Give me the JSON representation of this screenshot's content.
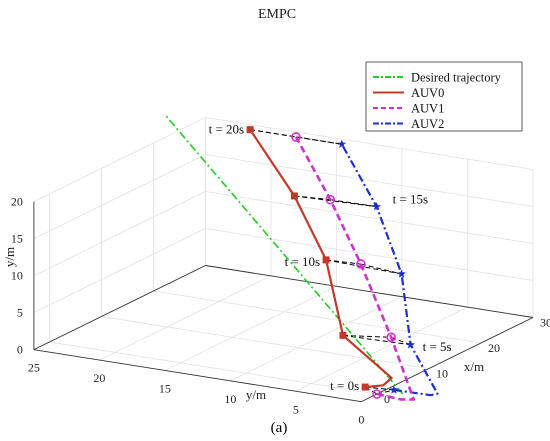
{
  "chart_data": {
    "type": "line",
    "title": "EMPC",
    "caption": "(a)",
    "xlabel": "x/m",
    "ylabel": "y/m",
    "zlabel": "y/m",
    "xlim": [
      -3,
      30
    ],
    "ylim": [
      0,
      25
    ],
    "zlim": [
      0,
      20
    ],
    "x_ticks": [
      "0",
      "10",
      "20",
      "30"
    ],
    "y_ticks": [
      "0",
      "5",
      "10",
      "15",
      "20",
      "25"
    ],
    "z_ticks": [
      "0",
      "5",
      "10",
      "15",
      "20"
    ],
    "grid": true,
    "legend_position": "top-right",
    "series": [
      {
        "name": "Desired trajectory",
        "color": "#22cc22",
        "style": "dash-dot",
        "points": [
          [
            1.2,
            -1.5,
            0
          ],
          [
            28.5,
            27.4,
            20
          ]
        ]
      },
      {
        "name": "AUV0",
        "color": "#c0392b",
        "style": "solid",
        "points": [
          [
            1.5,
            1.5,
            0
          ],
          [
            2.2,
            0.4,
            0.3
          ],
          [
            2.8,
            0,
            1.2
          ],
          [
            4.8,
            4.5,
            5
          ],
          [
            15.4,
            10,
            10
          ],
          [
            21.9,
            15,
            15
          ],
          [
            28.5,
            21,
            20
          ]
        ]
      },
      {
        "name": "AUV1",
        "color": "#cc33cc",
        "style": "dashed",
        "points": [
          [
            0,
            0,
            0
          ],
          [
            -0.5,
            -2,
            0
          ],
          [
            -1,
            -3.2,
            0.5
          ],
          [
            6.5,
            1.5,
            5
          ],
          [
            15.8,
            7.5,
            10
          ],
          [
            22.5,
            12.5,
            15
          ],
          [
            28.5,
            17.5,
            20
          ]
        ]
      },
      {
        "name": "AUV2",
        "color": "#1f2fc8",
        "style": "dash-dot",
        "points": [
          [
            2,
            -0.5,
            0
          ],
          [
            1.5,
            -3.5,
            0.3
          ],
          [
            0.3,
            -4.5,
            1.2
          ],
          [
            5.2,
            -0.5,
            5
          ],
          [
            14.8,
            4,
            10
          ],
          [
            22.6,
            9,
            15
          ],
          [
            28.5,
            14,
            20
          ]
        ]
      }
    ],
    "annotations": [
      {
        "text": "t = 0s",
        "index": 0
      },
      {
        "text": "t = 5s",
        "index": 3
      },
      {
        "text": "t = 10s",
        "index": 4
      },
      {
        "text": "t = 15s",
        "index": 5
      },
      {
        "text": "t = 20s",
        "index": 6
      }
    ],
    "formation_line_color": "#000000"
  }
}
